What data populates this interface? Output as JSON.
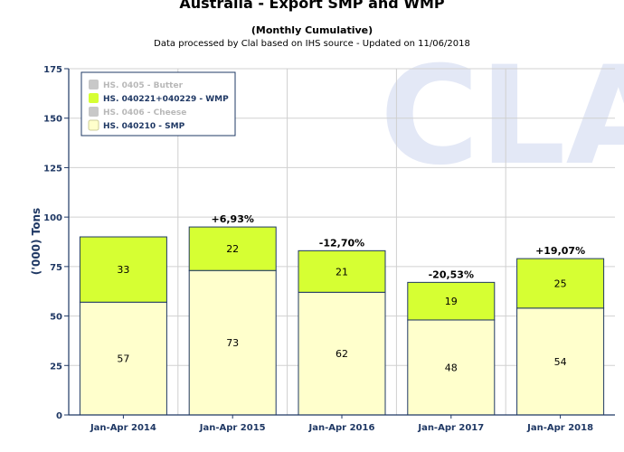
{
  "header": {
    "title": "Australia - Export SMP and WMP",
    "subtitle": "(Monthly Cumulative)",
    "note": "Data processed by Clal based on IHS source - Updated on 11/06/2018"
  },
  "watermark": "CLAL",
  "colors": {
    "smp": "#ffffcc",
    "wmp": "#d6ff33",
    "inactive": "#c8c8c8",
    "axis": "#1f3864",
    "bar_border": "#1f3864"
  },
  "chart_data": {
    "type": "bar",
    "stacked": true,
    "categories": [
      "Jan-Apr 2014",
      "Jan-Apr 2015",
      "Jan-Apr 2016",
      "Jan-Apr 2017",
      "Jan-Apr 2018"
    ],
    "series": [
      {
        "name": "HS. 040210 - SMP",
        "values": [
          57,
          73,
          62,
          48,
          54
        ]
      },
      {
        "name": "HS. 040221+040229 - WMP",
        "values": [
          33,
          22,
          21,
          19,
          25
        ]
      }
    ],
    "percent_labels": [
      "",
      "+6,93%",
      "-12,70%",
      "-20,53%",
      "+19,07%"
    ],
    "ylabel": "('000) Tons",
    "ylim": [
      0,
      175
    ],
    "yticks": [
      0,
      25,
      50,
      75,
      100,
      125,
      150,
      175
    ],
    "grid": true,
    "legend": {
      "placement": "top-left",
      "entries": [
        {
          "label": "HS. 0405 - Butter",
          "active": false
        },
        {
          "label": "HS. 040221+040229 - WMP",
          "active": true,
          "series": 1
        },
        {
          "label": "HS. 0406 - Cheese",
          "active": false
        },
        {
          "label": "HS. 040210 - SMP",
          "active": true,
          "series": 0
        }
      ]
    }
  }
}
